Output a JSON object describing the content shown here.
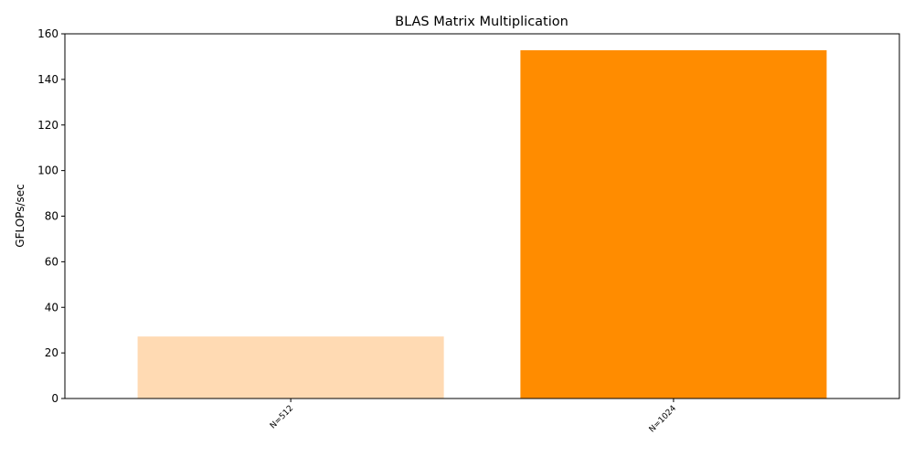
{
  "chart_data": {
    "type": "bar",
    "title": "BLAS Matrix Multiplication",
    "xlabel": "",
    "ylabel": "GFLOPs/sec",
    "categories": [
      "N=512",
      "N=1024"
    ],
    "values": [
      27.2,
      152.8
    ],
    "colors": [
      "#ffdab3",
      "#ff8c00"
    ],
    "ylim": [
      0,
      160
    ],
    "yticks": [
      0,
      20,
      40,
      60,
      80,
      100,
      120,
      140,
      160
    ],
    "grid": false,
    "legend": "none"
  }
}
